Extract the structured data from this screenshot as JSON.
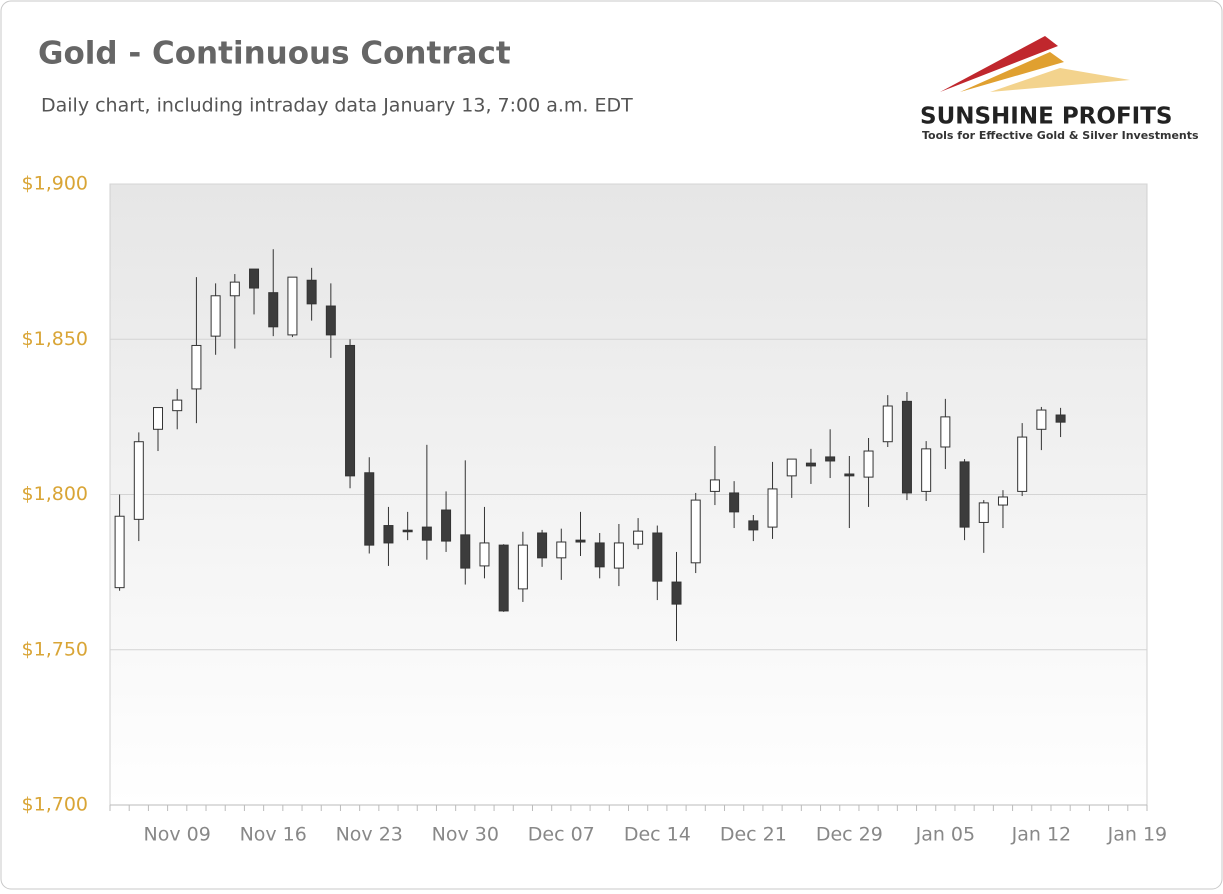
{
  "chart_data": {
    "type": "candlestick",
    "title": "Gold - Continuous Contract",
    "subtitle": "Daily chart, including intraday data January 13, 7:00 a.m. EDT",
    "logo": {
      "name": "SUNSHINE PROFITS",
      "tagline": "Tools for Effective Gold & Silver Investments"
    },
    "categories": [
      null,
      null,
      null,
      "Nov 09",
      null,
      null,
      null,
      null,
      "Nov 16",
      null,
      null,
      null,
      null,
      "Nov 23",
      null,
      null,
      null,
      null,
      "Nov 30",
      null,
      null,
      null,
      null,
      "Dec 07",
      null,
      null,
      null,
      null,
      "Dec 14",
      null,
      null,
      null,
      null,
      "Dec 21",
      null,
      null,
      null,
      null,
      "Dec 29",
      null,
      null,
      null,
      null,
      "Jan 05",
      null,
      null,
      null,
      null,
      "Jan 12",
      null,
      null,
      null,
      null,
      "Jan 19"
    ],
    "series": [
      {
        "name": "open",
        "values": [
          1770,
          1792,
          1821,
          1827,
          1834,
          1851,
          1864,
          1872.6,
          1865,
          1851.4,
          1869,
          1860.7,
          1848,
          1807,
          1790,
          1788.5,
          1789.5,
          1795,
          1787,
          1777,
          1783.7,
          1769.6,
          1787.6,
          1779.6,
          1785.3,
          1784.4,
          1776.3,
          1784,
          1787.6,
          1771.8,
          1778,
          1801,
          1800.5,
          1791.5,
          1789.5,
          1806,
          1810.1,
          1812.1,
          1806.6,
          1805.6,
          1817,
          1830,
          1801,
          1815.3,
          1810.5,
          1791,
          1796.6,
          1801,
          1821,
          1825.6,
          null,
          null,
          null,
          null
        ]
      },
      {
        "name": "high",
        "values": [
          1800,
          1820,
          1828,
          1834,
          1870,
          1868,
          1871,
          1872.6,
          1879,
          1870,
          1873,
          1868,
          1850,
          1812,
          1796,
          1794.4,
          1816,
          1801,
          1811,
          1796,
          1784,
          1788,
          1788.6,
          1789,
          1794.4,
          1787.6,
          1790.5,
          1792.4,
          1790,
          1781.5,
          1800.5,
          1815.6,
          1804.3,
          1793.4,
          1810.5,
          1811.4,
          1814.7,
          1821,
          1812.4,
          1818.2,
          1832,
          1833,
          1817.2,
          1830.8,
          1811.4,
          1798.2,
          1801.4,
          1823,
          1828.2,
          1827.9,
          null,
          null,
          null,
          null
        ]
      },
      {
        "name": "low",
        "values": [
          1769,
          1785,
          1814,
          1821,
          1823,
          1845,
          1847,
          1858,
          1851,
          1850.7,
          1856,
          1844,
          1802,
          1781,
          1777,
          1785.3,
          1779,
          1781.5,
          1771,
          1773,
          1762.2,
          1765.4,
          1776.7,
          1772.5,
          1780.2,
          1773,
          1770.5,
          1782.4,
          1766,
          1752.8,
          1774.7,
          1796.6,
          1789.2,
          1785,
          1785.7,
          1798.9,
          1803.4,
          1805.3,
          1789.2,
          1796,
          1815.3,
          1798.2,
          1797.9,
          1808.2,
          1785.3,
          1781.2,
          1789.2,
          1799.5,
          1814.3,
          1818.5,
          null,
          null,
          null,
          null
        ]
      },
      {
        "name": "close",
        "values": [
          1793,
          1817,
          1828,
          1830.4,
          1848,
          1864,
          1868.4,
          1866.5,
          1854,
          1870,
          1861.4,
          1851.4,
          1806,
          1783.7,
          1784.4,
          1788,
          1785.3,
          1785,
          1776.3,
          1784.4,
          1762.5,
          1783.7,
          1779.6,
          1784.7,
          1784.7,
          1776.7,
          1784.4,
          1788.2,
          1772.1,
          1764.7,
          1798.2,
          1804.7,
          1794.4,
          1788.6,
          1801.8,
          1811.4,
          1809.2,
          1810.8,
          1806,
          1814,
          1828.5,
          1800.5,
          1814.7,
          1825,
          1789.5,
          1797.3,
          1799.2,
          1818.5,
          1827.2,
          1823.3,
          null,
          null,
          null,
          null
        ]
      }
    ],
    "up_color": "#ffffff",
    "down_color": "#3c3c3c",
    "edge_color": "#333333",
    "ylim": [
      1700,
      1900
    ],
    "yticks": [
      {
        "value": 1700,
        "label": "$1,700"
      },
      {
        "value": 1750,
        "label": "$1,750"
      },
      {
        "value": 1800,
        "label": "$1,800"
      },
      {
        "value": 1850,
        "label": "$1,850"
      },
      {
        "value": 1900,
        "label": "$1,900"
      }
    ],
    "grid": true
  }
}
